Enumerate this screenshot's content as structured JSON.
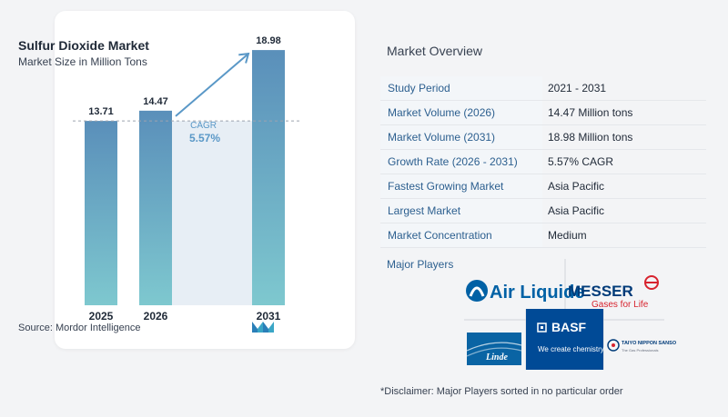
{
  "chart_data": {
    "type": "bar",
    "title": "Sulfur Dioxide Market",
    "subtitle": "Market Size in Million Tons",
    "categories": [
      "2025",
      "2026",
      "2031"
    ],
    "values": [
      13.71,
      14.47,
      18.98
    ],
    "value_labels": [
      "13.71",
      "14.47",
      "18.98"
    ],
    "cagr_label": "CAGR",
    "cagr_value": "5.57%",
    "reference_line_value": 13.71,
    "ylim": [
      0,
      20
    ]
  },
  "source": "Source:  Mordor Intelligence",
  "overview": {
    "title": "Market Overview",
    "rows": [
      {
        "label": "Study Period",
        "value": "2021 - 2031"
      },
      {
        "label": "Market Volume (2026)",
        "value": "14.47 Million tons"
      },
      {
        "label": "Market Volume (2031)",
        "value": "18.98 Million tons"
      },
      {
        "label": "Growth Rate (2026 - 2031)",
        "value": "5.57% CAGR"
      },
      {
        "label": "Fastest Growing Market",
        "value": "Asia Pacific"
      },
      {
        "label": "Largest Market",
        "value": "Asia Pacific"
      },
      {
        "label": "Market Concentration",
        "value": "Medium"
      }
    ]
  },
  "players": {
    "title": "Major Players",
    "logos": {
      "air_liquide": "Air Liquide",
      "messer": "MESSER",
      "messer_tagline": "Gases for Life",
      "basf": "BASF",
      "basf_tagline": "We create chemistry",
      "linde": "Linde",
      "taiyo": "TAIYO NIPPON SANSO",
      "taiyo_tagline": "The Gas Professionals"
    }
  },
  "disclaimer": "*Disclaimer: Major Players sorted in no particular order",
  "colors": {
    "bar_gradient_top": "#5a8fba",
    "bar_gradient_bottom": "#7ec8cf",
    "bg_panel": "#e7eef5",
    "arrow": "#5a98c7",
    "cagr_text": "#5a98c7",
    "key_bg": "#f3f6f9",
    "key_text": "#2c5f8f",
    "air_liquide": "#0061a5",
    "air_liquide_red": "#e2231a",
    "messer": "#003b79",
    "messer_red": "#d7232e",
    "basf": "#004a96",
    "linde": "#0a64a4"
  }
}
